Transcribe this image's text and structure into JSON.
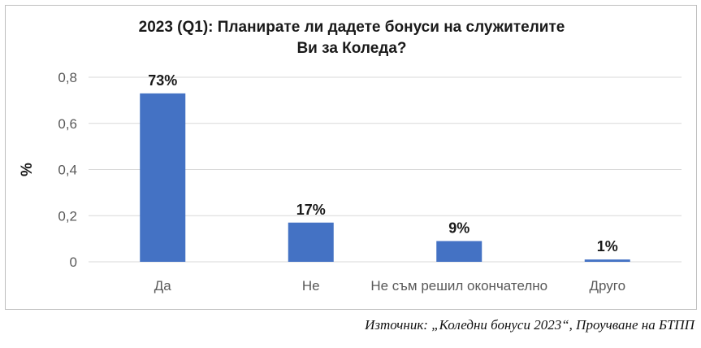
{
  "chart_data": {
    "type": "bar",
    "title_lines": [
      "2023 (Q1): Планирате ли дадете бонуси на служителите",
      "Ви за Коледа?"
    ],
    "xlabel": "",
    "ylabel": "%",
    "categories": [
      "Да",
      "Не",
      "Не съм решил окончателно",
      "Друго"
    ],
    "values": [
      0.73,
      0.17,
      0.09,
      0.01
    ],
    "data_labels": [
      "73%",
      "17%",
      "9%",
      "1%"
    ],
    "ylim": [
      0,
      0.8
    ],
    "yticks": [
      0,
      0.2,
      0.4,
      0.6,
      0.8
    ],
    "ytick_labels": [
      "0",
      "0,2",
      "0,4",
      "0,6",
      "0,8"
    ],
    "grid": true,
    "legend": "none",
    "colors": {
      "bar": "#4472c4",
      "grid": "#d9d9d9",
      "axis": "#d9d9d9",
      "tick_text": "#595959",
      "label_text": "#1a1a1a"
    }
  },
  "source_note": "Източник: „Коледни бонуси 2023“, Проучване на БТПП"
}
